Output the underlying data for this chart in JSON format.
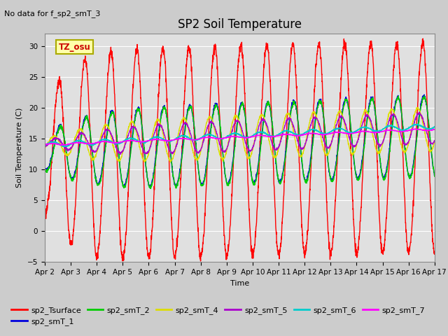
{
  "title": "SP2 Soil Temperature",
  "ylabel": "Soil Temperature (C)",
  "xlabel": "Time",
  "no_data_text": "No data for f_sp2_smT_3",
  "tz_label": "TZ_osu",
  "ylim": [
    -5,
    32
  ],
  "yticks": [
    -5,
    0,
    5,
    10,
    15,
    20,
    25,
    30
  ],
  "series": {
    "sp2_Tsurface": {
      "color": "#ff0000",
      "lw": 1.0
    },
    "sp2_smT_1": {
      "color": "#0000dd",
      "lw": 1.0
    },
    "sp2_smT_2": {
      "color": "#00cc00",
      "lw": 1.0
    },
    "sp2_smT_4": {
      "color": "#dddd00",
      "lw": 1.0
    },
    "sp2_smT_5": {
      "color": "#aa00cc",
      "lw": 1.0
    },
    "sp2_smT_6": {
      "color": "#00cccc",
      "lw": 1.0
    },
    "sp2_smT_7": {
      "color": "#ff00ff",
      "lw": 1.0
    }
  },
  "x_tick_labels": [
    "Apr 2",
    "Apr 3",
    "Apr 4",
    "Apr 5",
    "Apr 6",
    "Apr 7",
    "Apr 8",
    "Apr 9",
    "Apr 10",
    "Apr 11",
    "Apr 12",
    "Apr 13",
    "Apr 14",
    "Apr 15",
    "Apr 16",
    "Apr 17"
  ],
  "num_days": 15,
  "pts_per_day": 144,
  "fig_bg": "#cccccc",
  "plot_bg": "#e0e0e0",
  "grid_color": "#ffffff",
  "title_fontsize": 12,
  "label_fontsize": 8,
  "tick_fontsize": 7.5
}
